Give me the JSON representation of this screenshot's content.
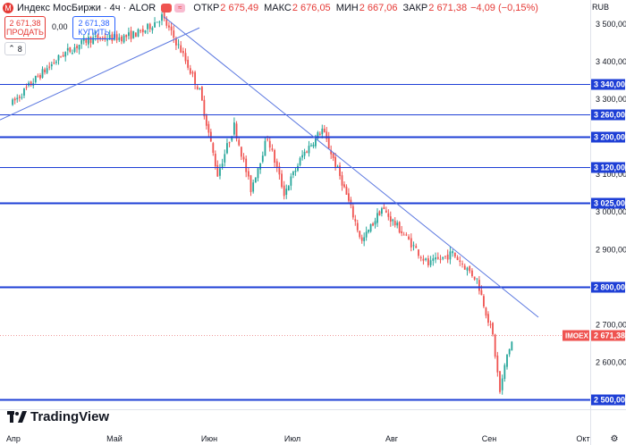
{
  "header": {
    "title": "Индекс МосБиржи · 4ч · ALOR",
    "icon_letter": "М",
    "open_label": "ОТКР",
    "open": "2 675,49",
    "high_label": "МАКС",
    "high": "2 676,05",
    "low_label": "МИН",
    "low": "2 667,06",
    "close_label": "ЗАКР",
    "close": "2 671,38",
    "change": "−4,09 (−0,15%)"
  },
  "trade": {
    "sell_price": "2 671,38",
    "sell_label": "ПРОДАТЬ",
    "spread": "0,00",
    "buy_price": "2 671,38",
    "buy_label": "КУПИТЬ",
    "indicators_count": "8"
  },
  "currency": "RUB",
  "brand": "TradingView",
  "colors": {
    "up": "#26a69a",
    "down": "#ef5350",
    "line": "#2962ff",
    "hline": "#1e3fd6"
  },
  "chart_data": {
    "type": "candlestick",
    "ylim": [
      2475,
      3545
    ],
    "x_ticks": [
      "Апр",
      "Май",
      "Июн",
      "Июл",
      "Авг",
      "Сен",
      "Окт"
    ],
    "y_ticks": [
      "3 500,00",
      "3 400,00",
      "3 300,00",
      "3 100,00",
      "3 000,00",
      "2 900,00",
      "2 700,00",
      "2 600,00"
    ],
    "horizontal_levels": [
      {
        "value": 3340,
        "label": "3 340,00",
        "weight": 1
      },
      {
        "value": 3260,
        "label": "3 260,00",
        "weight": 1
      },
      {
        "value": 3200,
        "label": "3 200,00",
        "weight": 2
      },
      {
        "value": 3120,
        "label": "3 120,00",
        "weight": 1
      },
      {
        "value": 3025,
        "label": "3 025,00",
        "weight": 2
      },
      {
        "value": 2800,
        "label": "2 800,00",
        "weight": 2
      },
      {
        "value": 2500,
        "label": "2 500,00",
        "weight": 2
      }
    ],
    "trendlines": [
      {
        "from": [
          "Апр",
          3245
        ],
        "to": [
          "Май",
          3490
        ]
      },
      {
        "from": [
          "Май",
          3520
        ],
        "to": [
          "Сен",
          2720
        ]
      }
    ],
    "last_price": {
      "label": "IMOEX",
      "value": 2671.38,
      "text": "2 671,38"
    },
    "close_path": [
      [
        "Апр",
        3290
      ],
      [
        "Апр",
        3360
      ],
      [
        "Апр",
        3420
      ],
      [
        "Апр",
        3460
      ],
      [
        "Май",
        3465
      ],
      [
        "Май",
        3480
      ],
      [
        "Май",
        3520
      ],
      [
        "Май",
        3430
      ],
      [
        "Май",
        3320
      ],
      [
        "Июн",
        3100
      ],
      [
        "Июн",
        3230
      ],
      [
        "Июн",
        3060
      ],
      [
        "Июн",
        3200
      ],
      [
        "Июн",
        3050
      ],
      [
        "Июл",
        3150
      ],
      [
        "Июл",
        3220
      ],
      [
        "Июл",
        3080
      ],
      [
        "Июл",
        2920
      ],
      [
        "Июл",
        3010
      ],
      [
        "Авг",
        2940
      ],
      [
        "Авг",
        2860
      ],
      [
        "Авг",
        2890
      ],
      [
        "Авг",
        2820
      ],
      [
        "Сен",
        2670
      ],
      [
        "Сен",
        2520
      ],
      [
        "Сен",
        2620
      ],
      [
        "Сен",
        2671
      ]
    ]
  }
}
